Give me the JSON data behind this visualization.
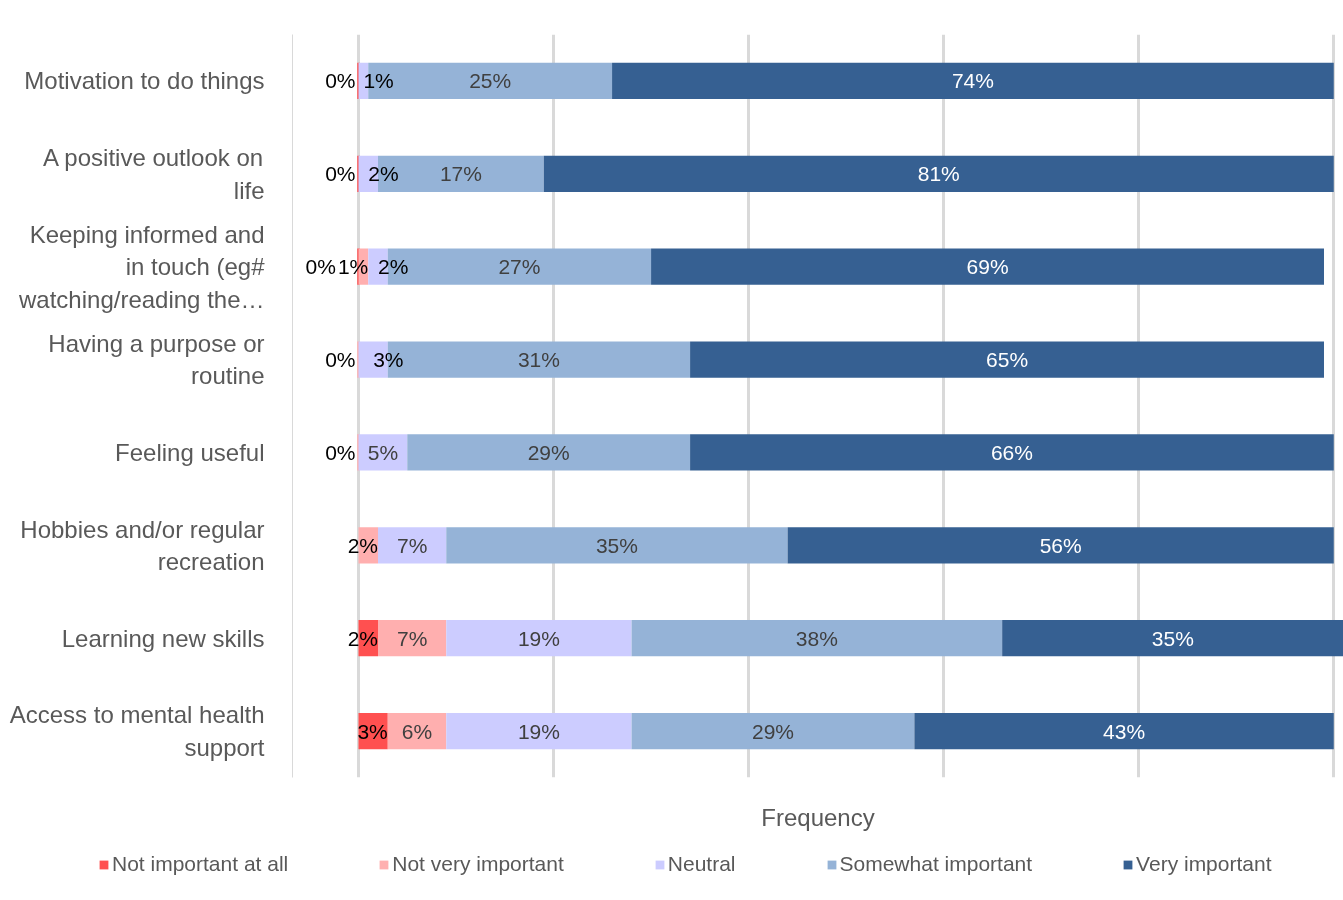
{
  "chart_data": {
    "type": "bar",
    "orientation": "horizontal",
    "stacked": true,
    "xlabel": "Frequency",
    "categories": [
      "Motivation to do things",
      "A positive outlook on life",
      "Keeping informed and in touch (eg# watching/reading the…",
      "Having a purpose or routine",
      "Feeling useful",
      "Hobbies and/or regular recreation",
      "Learning new skills",
      "Access to mental health support"
    ],
    "series": [
      {
        "name": "Not important at all",
        "color": "#ff5050",
        "values": [
          0,
          0,
          0,
          null,
          null,
          null,
          2,
          3
        ],
        "value_labels": [
          "0%",
          "0%",
          "0%",
          null,
          null,
          null,
          "2%",
          "3%"
        ]
      },
      {
        "name": "Not very important",
        "color": "#ffafaf",
        "values": [
          null,
          null,
          1,
          0,
          0,
          2,
          7,
          6
        ],
        "value_labels": [
          null,
          null,
          "1%",
          "0%",
          "0%",
          "2%",
          "7%",
          "6%"
        ]
      },
      {
        "name": "Neutral",
        "color": "#ccccff",
        "values": [
          1,
          2,
          2,
          3,
          5,
          7,
          19,
          19
        ],
        "value_labels": [
          "1%",
          "2%",
          "2%",
          "3%",
          "5%",
          "7%",
          "19%",
          "19%"
        ]
      },
      {
        "name": "Somewhat important",
        "color": "#95b3d7",
        "values": [
          25,
          17,
          27,
          31,
          29,
          35,
          38,
          29
        ],
        "value_labels": [
          "25%",
          "17%",
          "27%",
          "31%",
          "29%",
          "35%",
          "38%",
          "29%"
        ]
      },
      {
        "name": "Very important",
        "color": "#366092",
        "values": [
          74,
          81,
          69,
          65,
          66,
          56,
          35,
          43
        ],
        "value_labels": [
          "74%",
          "81%",
          "69%",
          "65%",
          "66%",
          "56%",
          "35%",
          "43%"
        ]
      }
    ],
    "tick_labels": "y",
    "grid": "x",
    "legend": "bottom"
  }
}
